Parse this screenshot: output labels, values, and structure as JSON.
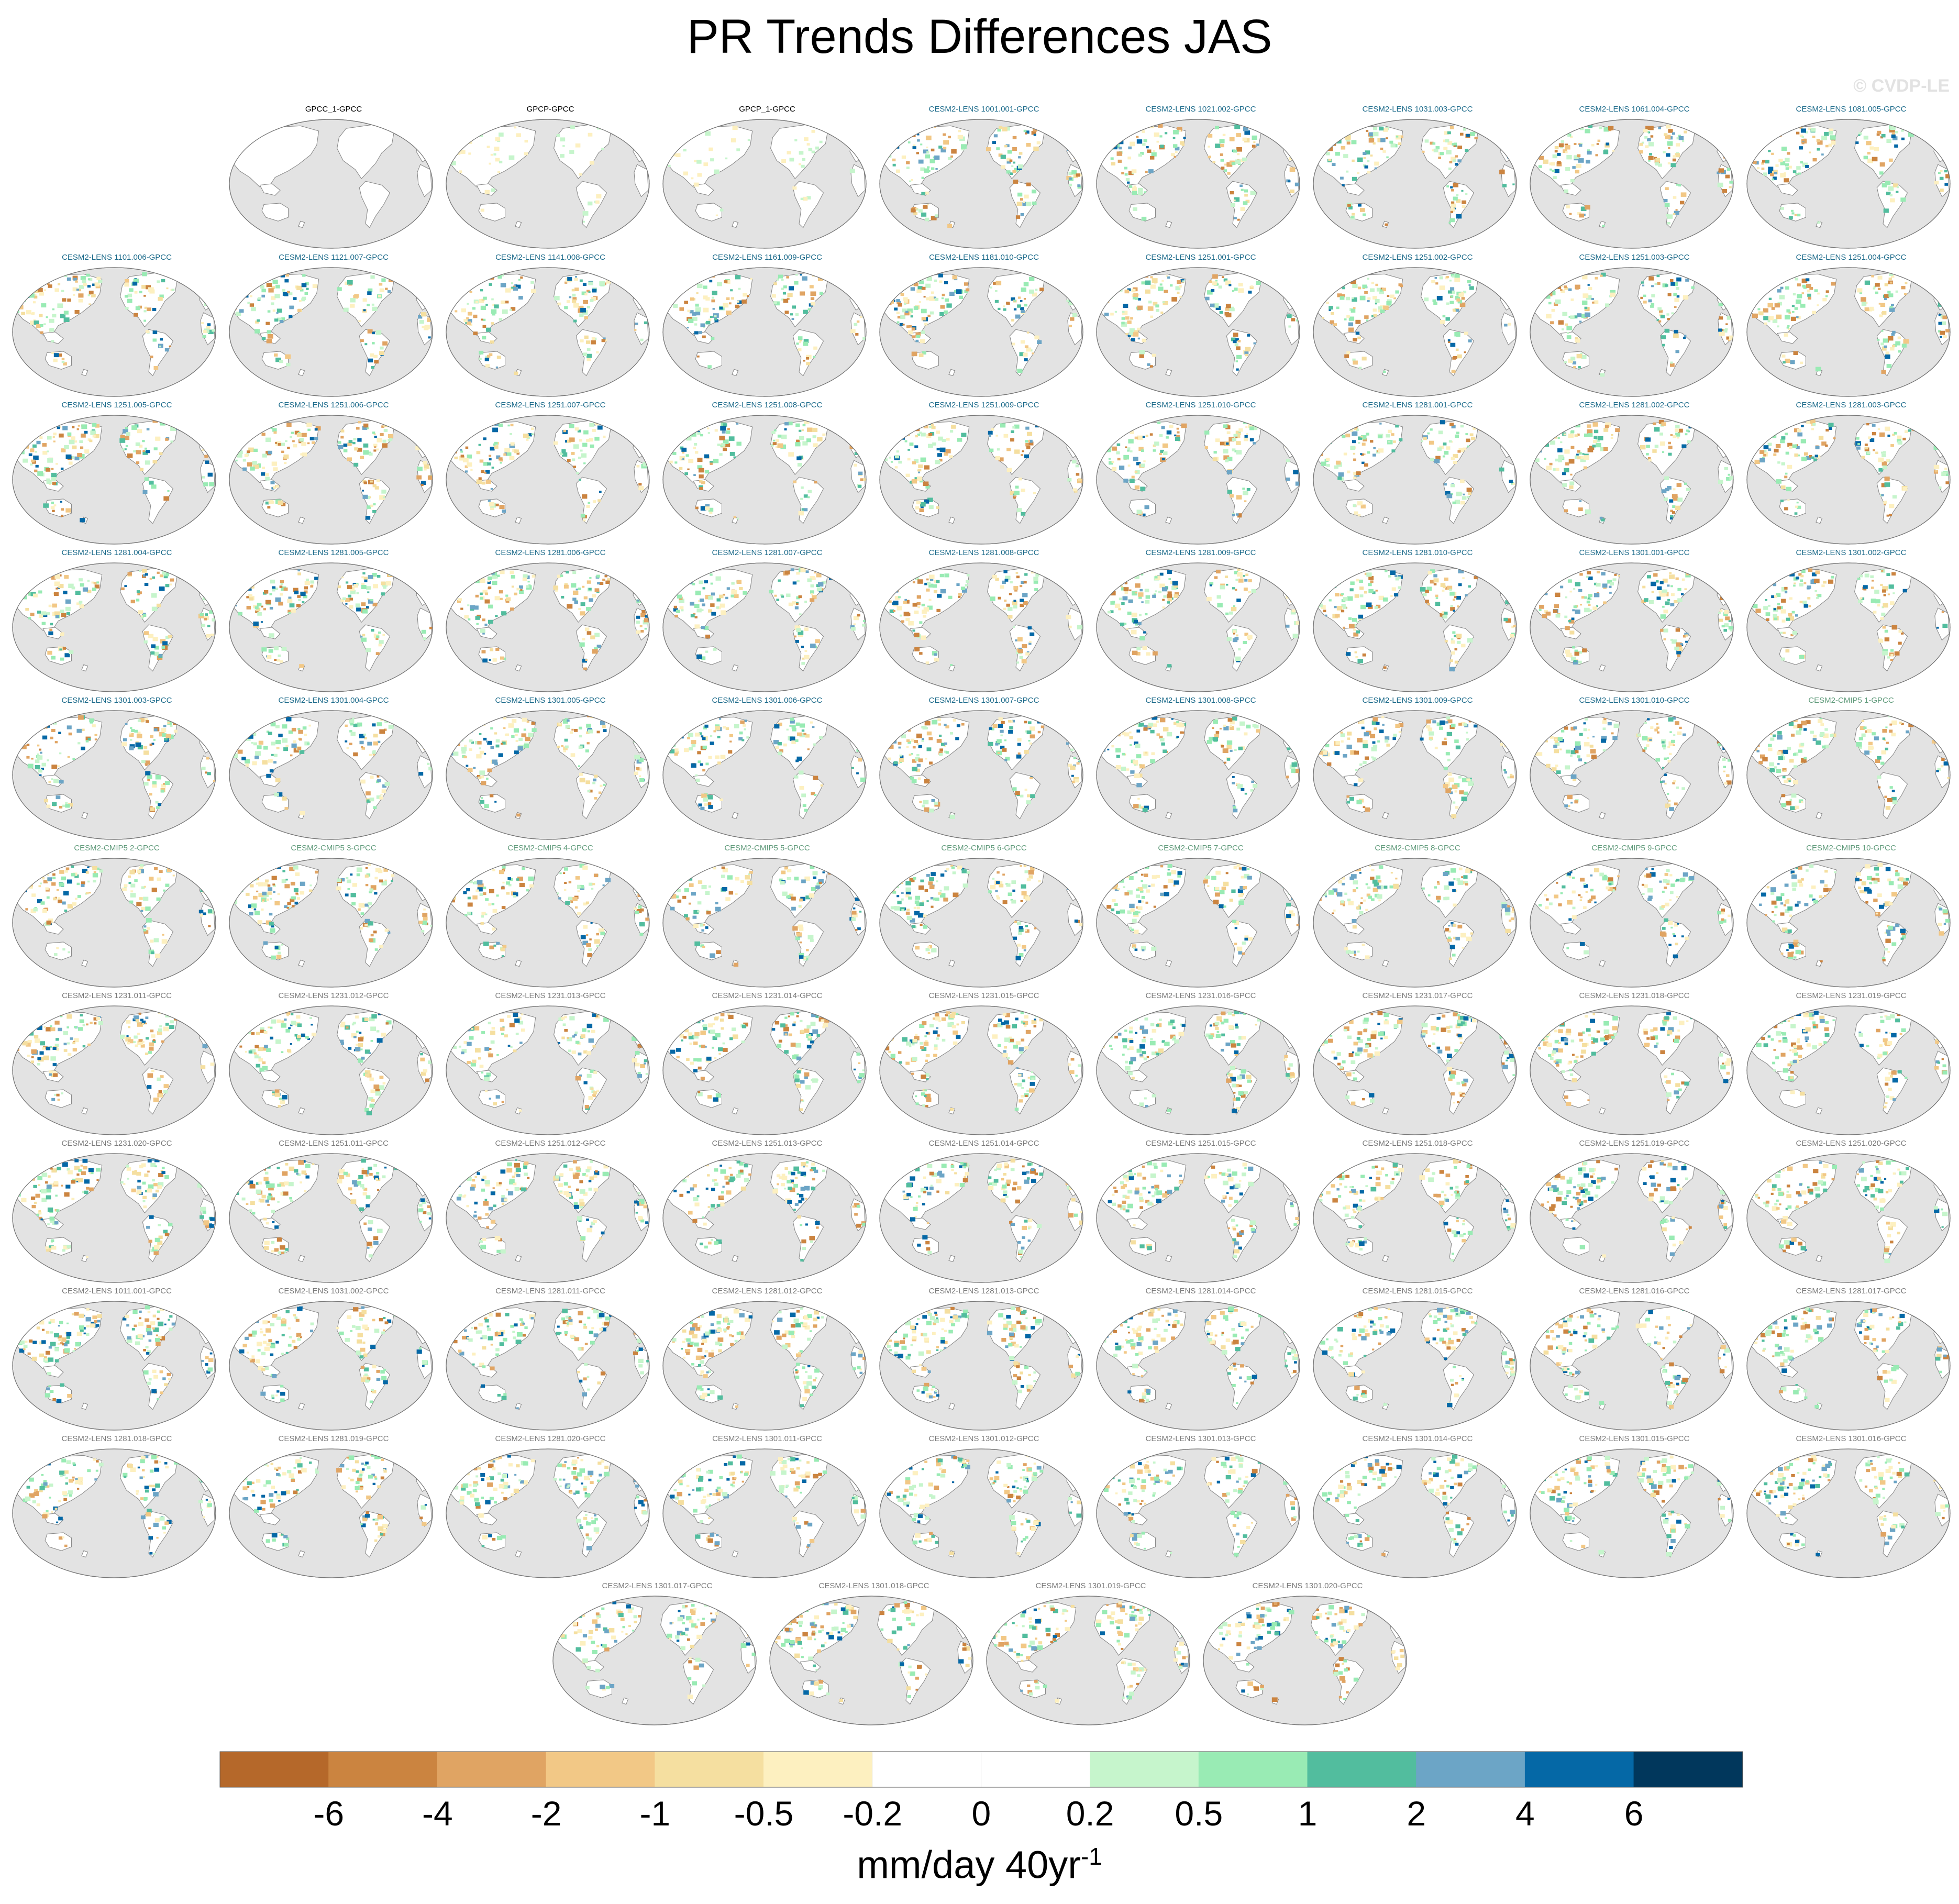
{
  "title": "PR Trends Differences JAS",
  "watermark": "© CVDP-LE",
  "chart_data": {
    "type": "map-panel-grid",
    "projection": "Robinson (Pacific-centered)",
    "variable": "PR",
    "season": "JAS",
    "rows": [
      {
        "panels": [
          {
            "label": "GPCC_1-GPCC",
            "group": "obs"
          },
          {
            "label": "GPCP-GPCC",
            "group": "obs"
          },
          {
            "label": "GPCP_1-GPCC",
            "group": "obs"
          },
          {
            "label": "CESM2-LENS 1001.001-GPCC",
            "group": "lens"
          },
          {
            "label": "CESM2-LENS 1021.002-GPCC",
            "group": "lens"
          },
          {
            "label": "CESM2-LENS 1031.003-GPCC",
            "group": "lens"
          },
          {
            "label": "CESM2-LENS 1061.004-GPCC",
            "group": "lens"
          },
          {
            "label": "CESM2-LENS 1081.005-GPCC",
            "group": "lens"
          }
        ]
      },
      {
        "panels": [
          {
            "label": "CESM2-LENS 1101.006-GPCC",
            "group": "lens"
          },
          {
            "label": "CESM2-LENS 1121.007-GPCC",
            "group": "lens"
          },
          {
            "label": "CESM2-LENS 1141.008-GPCC",
            "group": "lens"
          },
          {
            "label": "CESM2-LENS 1161.009-GPCC",
            "group": "lens"
          },
          {
            "label": "CESM2-LENS 1181.010-GPCC",
            "group": "lens"
          },
          {
            "label": "CESM2-LENS 1251.001-GPCC",
            "group": "lens"
          },
          {
            "label": "CESM2-LENS 1251.002-GPCC",
            "group": "lens"
          },
          {
            "label": "CESM2-LENS 1251.003-GPCC",
            "group": "lens"
          },
          {
            "label": "CESM2-LENS 1251.004-GPCC",
            "group": "lens"
          }
        ]
      },
      {
        "panels": [
          {
            "label": "CESM2-LENS 1251.005-GPCC",
            "group": "lens"
          },
          {
            "label": "CESM2-LENS 1251.006-GPCC",
            "group": "lens"
          },
          {
            "label": "CESM2-LENS 1251.007-GPCC",
            "group": "lens"
          },
          {
            "label": "CESM2-LENS 1251.008-GPCC",
            "group": "lens"
          },
          {
            "label": "CESM2-LENS 1251.009-GPCC",
            "group": "lens"
          },
          {
            "label": "CESM2-LENS 1251.010-GPCC",
            "group": "lens"
          },
          {
            "label": "CESM2-LENS 1281.001-GPCC",
            "group": "lens"
          },
          {
            "label": "CESM2-LENS 1281.002-GPCC",
            "group": "lens"
          },
          {
            "label": "CESM2-LENS 1281.003-GPCC",
            "group": "lens"
          }
        ]
      },
      {
        "panels": [
          {
            "label": "CESM2-LENS 1281.004-GPCC",
            "group": "lens"
          },
          {
            "label": "CESM2-LENS 1281.005-GPCC",
            "group": "lens"
          },
          {
            "label": "CESM2-LENS 1281.006-GPCC",
            "group": "lens"
          },
          {
            "label": "CESM2-LENS 1281.007-GPCC",
            "group": "lens"
          },
          {
            "label": "CESM2-LENS 1281.008-GPCC",
            "group": "lens"
          },
          {
            "label": "CESM2-LENS 1281.009-GPCC",
            "group": "lens"
          },
          {
            "label": "CESM2-LENS 1281.010-GPCC",
            "group": "lens"
          },
          {
            "label": "CESM2-LENS 1301.001-GPCC",
            "group": "lens"
          },
          {
            "label": "CESM2-LENS 1301.002-GPCC",
            "group": "lens"
          }
        ]
      },
      {
        "panels": [
          {
            "label": "CESM2-LENS 1301.003-GPCC",
            "group": "lens"
          },
          {
            "label": "CESM2-LENS 1301.004-GPCC",
            "group": "lens"
          },
          {
            "label": "CESM2-LENS 1301.005-GPCC",
            "group": "lens"
          },
          {
            "label": "CESM2-LENS 1301.006-GPCC",
            "group": "lens"
          },
          {
            "label": "CESM2-LENS 1301.007-GPCC",
            "group": "lens"
          },
          {
            "label": "CESM2-LENS 1301.008-GPCC",
            "group": "lens"
          },
          {
            "label": "CESM2-LENS 1301.009-GPCC",
            "group": "lens"
          },
          {
            "label": "CESM2-LENS 1301.010-GPCC",
            "group": "lens"
          },
          {
            "label": "CESM2-CMIP5 1-GPCC",
            "group": "cmip5"
          }
        ]
      },
      {
        "panels": [
          {
            "label": "CESM2-CMIP5 2-GPCC",
            "group": "cmip5"
          },
          {
            "label": "CESM2-CMIP5 3-GPCC",
            "group": "cmip5"
          },
          {
            "label": "CESM2-CMIP5 4-GPCC",
            "group": "cmip5"
          },
          {
            "label": "CESM2-CMIP5 5-GPCC",
            "group": "cmip5"
          },
          {
            "label": "CESM2-CMIP5 6-GPCC",
            "group": "cmip5"
          },
          {
            "label": "CESM2-CMIP5 7-GPCC",
            "group": "cmip5"
          },
          {
            "label": "CESM2-CMIP5 8-GPCC",
            "group": "cmip5"
          },
          {
            "label": "CESM2-CMIP5 9-GPCC",
            "group": "cmip5"
          },
          {
            "label": "CESM2-CMIP5 10-GPCC",
            "group": "cmip5"
          }
        ]
      },
      {
        "panels": [
          {
            "label": "CESM2-LENS 1231.011-GPCC",
            "group": "smbb"
          },
          {
            "label": "CESM2-LENS 1231.012-GPCC",
            "group": "smbb"
          },
          {
            "label": "CESM2-LENS 1231.013-GPCC",
            "group": "smbb"
          },
          {
            "label": "CESM2-LENS 1231.014-GPCC",
            "group": "smbb"
          },
          {
            "label": "CESM2-LENS 1231.015-GPCC",
            "group": "smbb"
          },
          {
            "label": "CESM2-LENS 1231.016-GPCC",
            "group": "smbb"
          },
          {
            "label": "CESM2-LENS 1231.017-GPCC",
            "group": "smbb"
          },
          {
            "label": "CESM2-LENS 1231.018-GPCC",
            "group": "smbb"
          },
          {
            "label": "CESM2-LENS 1231.019-GPCC",
            "group": "smbb"
          }
        ]
      },
      {
        "panels": [
          {
            "label": "CESM2-LENS 1231.020-GPCC",
            "group": "smbb"
          },
          {
            "label": "CESM2-LENS 1251.011-GPCC",
            "group": "smbb"
          },
          {
            "label": "CESM2-LENS 1251.012-GPCC",
            "group": "smbb"
          },
          {
            "label": "CESM2-LENS 1251.013-GPCC",
            "group": "smbb"
          },
          {
            "label": "CESM2-LENS 1251.014-GPCC",
            "group": "smbb"
          },
          {
            "label": "CESM2-LENS 1251.015-GPCC",
            "group": "smbb"
          },
          {
            "label": "CESM2-LENS 1251.018-GPCC",
            "group": "smbb"
          },
          {
            "label": "CESM2-LENS 1251.019-GPCC",
            "group": "smbb"
          },
          {
            "label": "CESM2-LENS 1251.020-GPCC",
            "group": "smbb"
          }
        ]
      },
      {
        "panels": [
          {
            "label": "CESM2-LENS 1011.001-GPCC",
            "group": "smbb"
          },
          {
            "label": "CESM2-LENS 1031.002-GPCC",
            "group": "smbb"
          },
          {
            "label": "CESM2-LENS 1281.011-GPCC",
            "group": "smbb"
          },
          {
            "label": "CESM2-LENS 1281.012-GPCC",
            "group": "smbb"
          },
          {
            "label": "CESM2-LENS 1281.013-GPCC",
            "group": "smbb"
          },
          {
            "label": "CESM2-LENS 1281.014-GPCC",
            "group": "smbb"
          },
          {
            "label": "CESM2-LENS 1281.015-GPCC",
            "group": "smbb"
          },
          {
            "label": "CESM2-LENS 1281.016-GPCC",
            "group": "smbb"
          },
          {
            "label": "CESM2-LENS 1281.017-GPCC",
            "group": "smbb"
          }
        ]
      },
      {
        "panels": [
          {
            "label": "CESM2-LENS 1281.018-GPCC",
            "group": "smbb"
          },
          {
            "label": "CESM2-LENS 1281.019-GPCC",
            "group": "smbb"
          },
          {
            "label": "CESM2-LENS 1281.020-GPCC",
            "group": "smbb"
          },
          {
            "label": "CESM2-LENS 1301.011-GPCC",
            "group": "smbb"
          },
          {
            "label": "CESM2-LENS 1301.012-GPCC",
            "group": "smbb"
          },
          {
            "label": "CESM2-LENS 1301.013-GPCC",
            "group": "smbb"
          },
          {
            "label": "CESM2-LENS 1301.014-GPCC",
            "group": "smbb"
          },
          {
            "label": "CESM2-LENS 1301.015-GPCC",
            "group": "smbb"
          },
          {
            "label": "CESM2-LENS 1301.016-GPCC",
            "group": "smbb"
          }
        ]
      },
      {
        "panels": [
          {
            "label": "CESM2-LENS 1301.017-GPCC",
            "group": "smbb"
          },
          {
            "label": "CESM2-LENS 1301.018-GPCC",
            "group": "smbb"
          },
          {
            "label": "CESM2-LENS 1301.019-GPCC",
            "group": "smbb"
          },
          {
            "label": "CESM2-LENS 1301.020-GPCC",
            "group": "smbb"
          }
        ]
      }
    ],
    "label_colors": {
      "obs": "#000000",
      "lens": "#1b6a8a",
      "cmip5": "#5f9a7a",
      "smbb": "#7a7a7a"
    },
    "colorbar": {
      "units": "mm/day 40yr",
      "units_superscript": "-1",
      "ticks": [
        "-6",
        "-4",
        "-2",
        "-1",
        "-0.5",
        "-0.2",
        "0",
        "0.2",
        "0.5",
        "1",
        "2",
        "4",
        "6"
      ],
      "colors": [
        "#b5682a",
        "#cb8440",
        "#e0a463",
        "#f2c886",
        "#f5dfa0",
        "#fdf0c0",
        "#ffffff",
        "#ffffff",
        "#c6f5cc",
        "#99ebb4",
        "#52bd9e",
        "#6ca5c6",
        "#0568a6",
        "#01375c"
      ]
    },
    "map_colors": {
      "ocean": "#e3e3e3",
      "land": "#ffffff",
      "coast": "#8a8a8a"
    }
  }
}
